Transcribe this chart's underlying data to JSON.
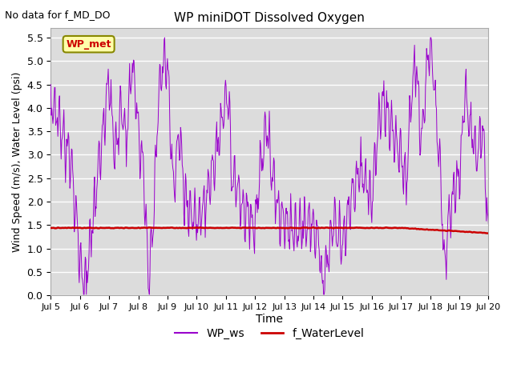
{
  "title": "WP miniDOT Dissolved Oxygen",
  "top_left_text": "No data for f_MD_DO",
  "xlabel": "Time",
  "ylabel": "Wind Speed (m/s), Water Level (psi)",
  "ylim": [
    0.0,
    5.5
  ],
  "yticks": [
    0.0,
    0.5,
    1.0,
    1.5,
    2.0,
    2.5,
    3.0,
    3.5,
    4.0,
    4.5,
    5.0,
    5.5
  ],
  "bg_color": "#dcdcdc",
  "plot_bg_color": "#dcdcdc",
  "wp_ws_color": "#9900cc",
  "f_waterlevel_color": "#cc0000",
  "legend_label_ws": "WP_ws",
  "legend_label_wl": "f_WaterLevel",
  "box_label": "WP_met",
  "box_bg": "#ffffaa",
  "box_border": "#888800",
  "box_text_color": "#cc0000",
  "x_start_day": 5,
  "x_end_day": 20,
  "xtick_days": [
    5,
    6,
    7,
    8,
    9,
    10,
    11,
    12,
    13,
    14,
    15,
    16,
    17,
    18,
    19,
    20
  ],
  "xtick_labels": [
    "Jul 5",
    "Jul 6",
    "Jul 7",
    "Jul 8",
    "Jul 9",
    "Jul 10",
    "Jul 11",
    "Jul 12",
    "Jul 13",
    "Jul 14",
    "Jul 15",
    "Jul 16",
    "Jul 17",
    "Jul 18",
    "Jul 19",
    "Jul 20"
  ],
  "ws_seed": 1234,
  "wl_seed": 5678
}
